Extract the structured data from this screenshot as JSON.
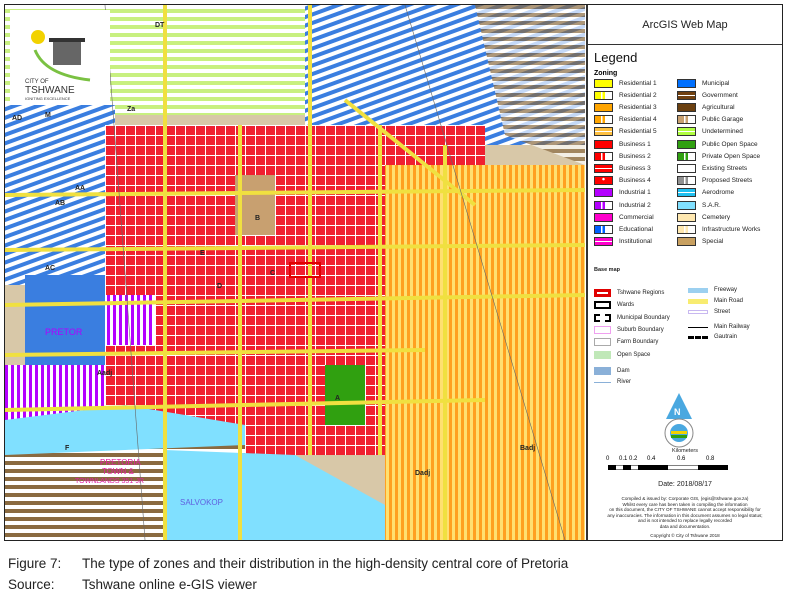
{
  "map": {
    "logo": {
      "line1": "CITY OF",
      "line2": "TSHWANE",
      "line3": "IGNITING EXCELLENCE"
    },
    "place_labels": [
      "PRETORIA",
      "TOWN &",
      "TOWNLANDS 351-JR",
      "SALVOKOP",
      "PRETOR"
    ],
    "zone_codes": [
      "A",
      "B",
      "C",
      "D",
      "E",
      "F",
      "AA",
      "AB",
      "AC",
      "AD",
      "DT",
      "M",
      "Za",
      "Aadj",
      "Badj",
      "Dadj"
    ]
  },
  "legend": {
    "window_title": "ArcGIS Web Map",
    "title": "Legend",
    "zoning_heading": "Zoning",
    "zoning": [
      {
        "label": "Residential 1",
        "color": "#ffff00",
        "hatch": false
      },
      {
        "label": "Residential 2",
        "color": "#ffff00",
        "hatch": true
      },
      {
        "label": "Residential 3",
        "color": "#ffa500",
        "hatch": false
      },
      {
        "label": "Residential 4",
        "color": "#ffa500",
        "hatch": true
      },
      {
        "label": "Residential 5",
        "color": "#ffc040",
        "hatch": "h"
      },
      {
        "label": "Business 1",
        "color": "#ff0000",
        "hatch": false
      },
      {
        "label": "Business 2",
        "color": "#ff0000",
        "hatch": true
      },
      {
        "label": "Business 3",
        "color": "#ff0000",
        "hatch": "h"
      },
      {
        "label": "Business 4",
        "color": "#ff0000",
        "hatch": "d"
      },
      {
        "label": "Industrial 1",
        "color": "#b400ff",
        "hatch": false
      },
      {
        "label": "Industrial 2",
        "color": "#b400ff",
        "hatch": true
      },
      {
        "label": "Commercial",
        "color": "#ff00cc",
        "hatch": false
      },
      {
        "label": "Educational",
        "color": "#0060ff",
        "hatch": true
      },
      {
        "label": "Institutional",
        "color": "#ff00cc",
        "hatch": "h"
      },
      {
        "label": "Municipal",
        "color": "#0070ff",
        "hatch": false
      },
      {
        "label": "Government",
        "color": "#704010",
        "hatch": "h"
      },
      {
        "label": "Agricultural",
        "color": "#6b4010",
        "hatch": false
      },
      {
        "label": "Public Garage",
        "color": "#c8a070",
        "hatch": true
      },
      {
        "label": "Undetermined",
        "color": "#b0ff40",
        "hatch": "h"
      },
      {
        "label": "Public Open Space",
        "color": "#30a010",
        "hatch": false
      },
      {
        "label": "Private Open Space",
        "color": "#30a010",
        "hatch": true
      },
      {
        "label": "Existing Streets",
        "color": "#ffffff",
        "hatch": false
      },
      {
        "label": "Proposed Streets",
        "color": "#909090",
        "hatch": true
      },
      {
        "label": "Aerodrome",
        "color": "#20c0f0",
        "hatch": "h"
      },
      {
        "label": "S.A.R.",
        "color": "#80e0ff",
        "hatch": false
      },
      {
        "label": "Cemetery",
        "color": "#ffe8b0",
        "hatch": false
      },
      {
        "label": "Infrastructure Works",
        "color": "#ffe8b0",
        "hatch": true
      },
      {
        "label": "Special",
        "color": "#c8a060",
        "hatch": false
      }
    ],
    "basemap_heading": "Base map",
    "basemap_left": [
      "Tshwane Regions",
      "Wards",
      "Municipal Boundary",
      "Suburb Boundary",
      "Farm Boundary",
      "Open Space",
      "Dam",
      "River"
    ],
    "basemap_right": [
      "Freeway",
      "Main Road",
      "Street",
      "Main Railway",
      "Gautrain"
    ],
    "north_label": "N",
    "scale_title": "Kilometers",
    "scale_ticks": [
      "0",
      "0.1",
      "0.2",
      "0.4",
      "0.6",
      "0.8"
    ],
    "date": "Date: 2018/08/17",
    "disclaimer": [
      "Compiled & issued by: Corporate GIS, (egis@tshwane.gov.za)",
      "Whilst every care has been taken in compiling the information",
      "on this document, the CITY OF TSHWANE cannot accept responsibility for",
      "any inaccuracies. The information in this document assumes no legal status;",
      "and is not intended to replace legally recorded",
      "data and documentation."
    ],
    "copyright": "Copyright © City of Tshwane 2018"
  },
  "caption": {
    "figure_label": "Figure 7:",
    "figure_text": "The type of zones and their distribution in the high-density central core of Pretoria",
    "source_label": "Source:",
    "source_text": "Tshwane online e-GIS viewer"
  }
}
